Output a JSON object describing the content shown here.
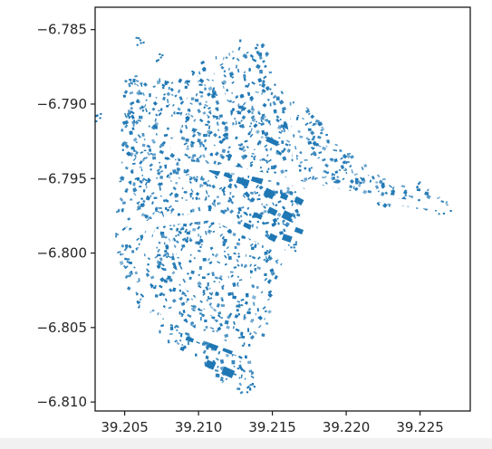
{
  "chart_data": {
    "type": "scatter",
    "title": "",
    "xlabel": "",
    "ylabel": "",
    "xlim": [
      39.203,
      39.2284
    ],
    "ylim": [
      -6.8106,
      -6.7835
    ],
    "grid": false,
    "x_ticks": [
      39.205,
      39.21,
      39.215,
      39.22,
      39.225
    ],
    "x_tick_labels": [
      "39.205",
      "39.210",
      "39.215",
      "39.220",
      "39.225"
    ],
    "y_ticks": [
      -6.785,
      -6.79,
      -6.795,
      -6.8,
      -6.805,
      -6.81
    ],
    "y_tick_labels": [
      "−6.785",
      "−6.790",
      "−6.795",
      "−6.800",
      "−6.805",
      "−6.810"
    ],
    "series": [
      {
        "color": "#1f77b4",
        "footprint_outline": [
          [
            39.2046,
            -6.795
          ],
          [
            39.205,
            -6.788
          ],
          [
            39.2095,
            -6.7885
          ],
          [
            39.2098,
            -6.787
          ],
          [
            39.2115,
            -6.7865
          ],
          [
            39.213,
            -6.7855
          ],
          [
            39.2145,
            -6.786
          ],
          [
            39.2158,
            -6.7895
          ],
          [
            39.2178,
            -6.7905
          ],
          [
            39.219,
            -6.7925
          ],
          [
            39.2205,
            -6.7935
          ],
          [
            39.2215,
            -6.7942
          ],
          [
            39.223,
            -6.795
          ],
          [
            39.2248,
            -6.7955
          ],
          [
            39.2262,
            -6.796
          ],
          [
            39.227,
            -6.7968
          ],
          [
            39.2262,
            -6.7975
          ],
          [
            39.223,
            -6.797
          ],
          [
            39.22,
            -6.796
          ],
          [
            39.218,
            -6.7955
          ],
          [
            39.217,
            -6.796
          ],
          [
            39.2168,
            -6.7975
          ],
          [
            39.216,
            -6.8
          ],
          [
            39.215,
            -6.8025
          ],
          [
            39.2148,
            -6.8052
          ],
          [
            39.2135,
            -6.8062
          ],
          [
            39.2135,
            -6.8075
          ],
          [
            39.214,
            -6.809
          ],
          [
            39.213,
            -6.8095
          ],
          [
            39.2112,
            -6.8085
          ],
          [
            39.21,
            -6.807
          ],
          [
            39.208,
            -6.806
          ],
          [
            39.2065,
            -6.8045
          ],
          [
            39.2055,
            -6.803
          ],
          [
            39.2048,
            -6.801
          ],
          [
            39.2042,
            -6.7985
          ]
        ],
        "large_buildings": [
          [
            39.2111,
            -6.7945
          ],
          [
            39.212,
            -6.7948
          ],
          [
            39.213,
            -6.7952
          ],
          [
            39.214,
            -6.795
          ],
          [
            39.2148,
            -6.796
          ],
          [
            39.2158,
            -6.7962
          ],
          [
            39.2168,
            -6.7965
          ],
          [
            39.215,
            -6.7972
          ],
          [
            39.216,
            -6.7975
          ],
          [
            39.214,
            -6.7975
          ],
          [
            39.2133,
            -6.7982
          ],
          [
            39.215,
            -6.799
          ],
          [
            39.216,
            -6.799
          ],
          [
            39.2168,
            -6.7985
          ],
          [
            39.2094,
            -6.8058
          ],
          [
            39.211,
            -6.8062
          ],
          [
            39.212,
            -6.8065
          ],
          [
            39.2108,
            -6.8075
          ],
          [
            39.212,
            -6.808
          ],
          [
            39.216,
            -6.7915
          ],
          [
            39.215,
            -6.7925
          ]
        ],
        "outliers": [
          [
            39.2033,
            -6.7908
          ],
          [
            39.206,
            -6.7857
          ],
          [
            39.2072,
            -6.7868
          ],
          [
            39.2098,
            -6.788
          ],
          [
            39.2268,
            -6.797
          ],
          [
            39.225,
            -6.7955
          ],
          [
            39.2165,
            -6.7995
          ],
          [
            39.2135,
            -6.809
          ]
        ]
      }
    ]
  }
}
